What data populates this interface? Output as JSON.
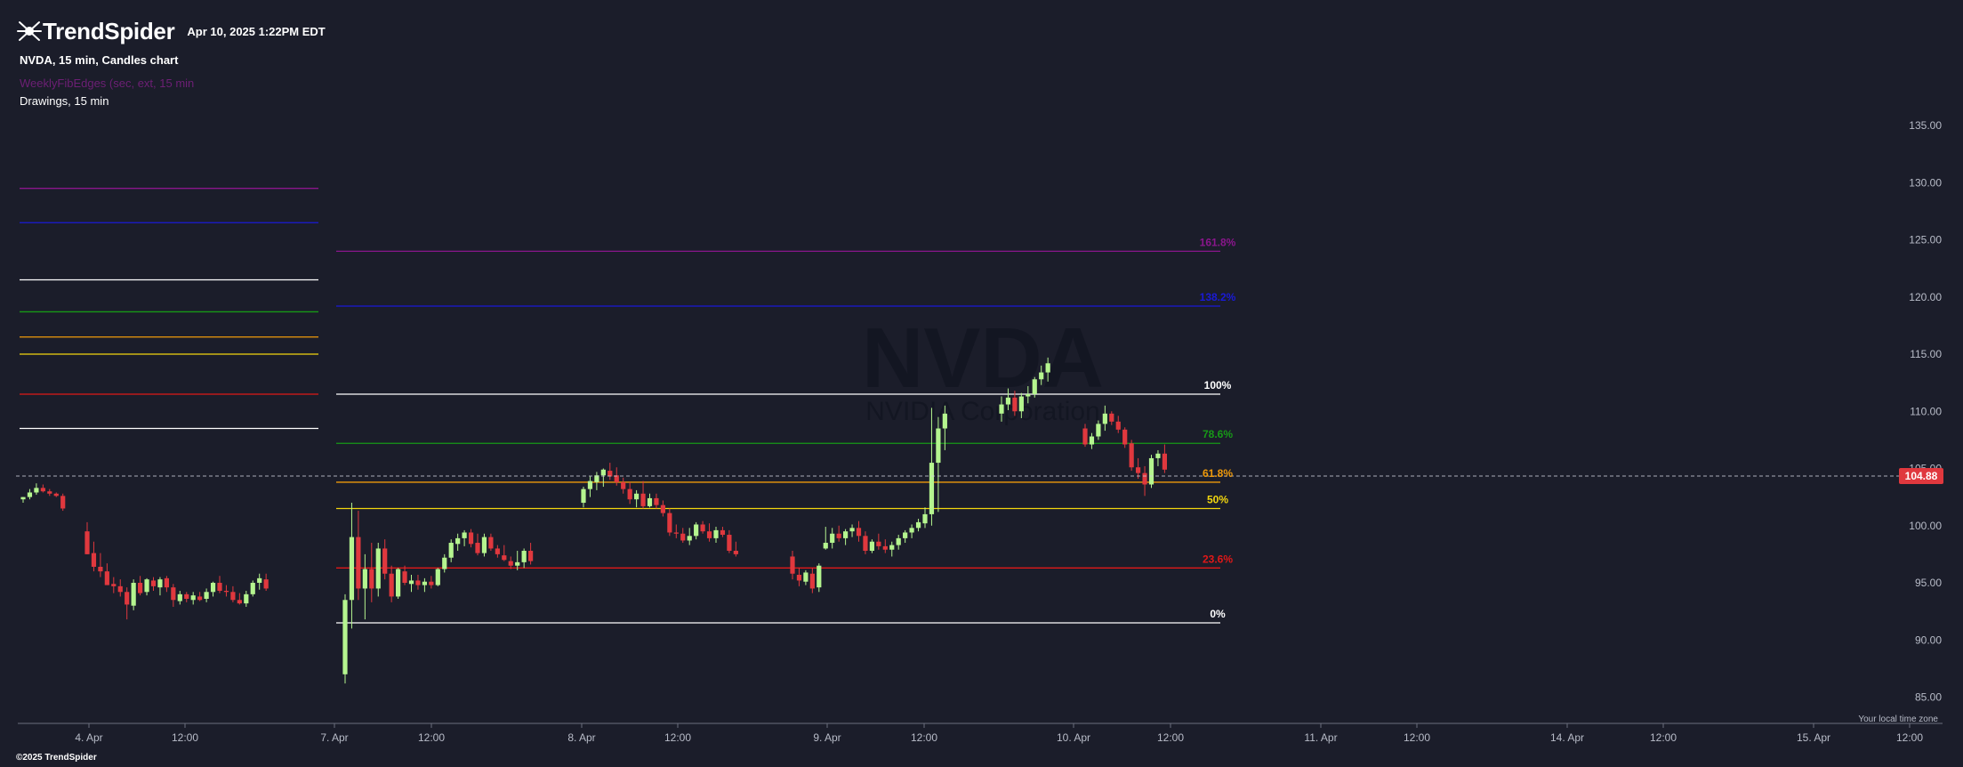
{
  "header": {
    "brand": "TrendSpider",
    "datetime": "Apr 10, 2025 1:22PM EDT",
    "chart_info": "NVDA, 15 min, Candles chart",
    "indicator_label": "WeeklyFibEdges (sec, ext, 15 min",
    "drawings_label": "Drawings, 15 min"
  },
  "watermark": {
    "symbol": "NVDA",
    "subtitle": "NVIDIA Corporation"
  },
  "footer": {
    "timezone": "Your local time zone",
    "copyright": "©2025 TrendSpider"
  },
  "colors": {
    "background": "#1b1d2a",
    "up": "#b5f58f",
    "down": "#e0383e",
    "price_badge": "#e0383e",
    "fib_0": "#ffffff",
    "fib_236": "#e01818",
    "fib_50": "#f2d60e",
    "fib_618": "#f09a0a",
    "fib_786": "#179a17",
    "fib_100": "#ffffff",
    "fib_1382": "#1a1ad6",
    "fib_1618": "#8a168c"
  },
  "chart_data": {
    "type": "candlestick",
    "symbol": "NVDA",
    "interval": "15 min",
    "y_axis": {
      "min": 85,
      "max": 135,
      "ticks": [
        "135.00",
        "130.00",
        "125.00",
        "120.00",
        "115.00",
        "110.00",
        "105.00",
        "100.00",
        "95.00",
        "90.00",
        "85.00"
      ]
    },
    "x_axis": {
      "ticks": [
        "4. Apr",
        "12:00",
        "7. Apr",
        "12:00",
        "8. Apr",
        "12:00",
        "9. Apr",
        "12:00",
        "10. Apr",
        "12:00",
        "11. Apr",
        "12:00",
        "14. Apr",
        "12:00",
        "15. Apr",
        "12:00"
      ]
    },
    "last_price": "104.88",
    "fib_labels": [
      "161.8%",
      "138.2%",
      "100%",
      "78.6%",
      "61.8%",
      "50%",
      "23.6%",
      "0%"
    ],
    "fib_levels": [
      {
        "label": "161.8%",
        "value": 124.0,
        "color": "#8a168c"
      },
      {
        "label": "138.2%",
        "value": 119.2,
        "color": "#1a1ad6"
      },
      {
        "label": "100%",
        "value": 111.5,
        "color": "#ffffff"
      },
      {
        "label": "78.6%",
        "value": 107.2,
        "color": "#179a17"
      },
      {
        "label": "61.8%",
        "value": 103.8,
        "color": "#f09a0a"
      },
      {
        "label": "50%",
        "value": 101.5,
        "color": "#f2d60e"
      },
      {
        "label": "23.6%",
        "value": 96.3,
        "color": "#e01818"
      },
      {
        "label": "0%",
        "value": 91.5,
        "color": "#ffffff"
      }
    ],
    "prev_week_levels": [
      {
        "value": 129.5,
        "color": "#8a168c"
      },
      {
        "value": 126.5,
        "color": "#1a1ad6"
      },
      {
        "value": 121.5,
        "color": "#ffffff"
      },
      {
        "value": 118.7,
        "color": "#179a17"
      },
      {
        "value": 116.5,
        "color": "#f09a0a"
      },
      {
        "value": 115.0,
        "color": "#f2d60e"
      },
      {
        "value": 111.5,
        "color": "#e01818"
      },
      {
        "value": 108.5,
        "color": "#ffffff"
      }
    ],
    "candles": [
      [
        102.3,
        102.5,
        102.0,
        102.5
      ],
      [
        102.5,
        103.2,
        102.3,
        102.9
      ],
      [
        102.9,
        103.7,
        102.7,
        103.3
      ],
      [
        103.3,
        103.6,
        102.9,
        103.0
      ],
      [
        103.0,
        103.2,
        102.6,
        102.8
      ],
      [
        102.8,
        102.9,
        102.5,
        102.6
      ],
      [
        102.6,
        102.8,
        101.3,
        101.5
      ],
      [
        99.5,
        100.3,
        97.5,
        97.5
      ],
      [
        97.6,
        98.6,
        96.0,
        96.4
      ],
      [
        96.4,
        97.6,
        95.5,
        96.0
      ],
      [
        96.0,
        96.7,
        94.8,
        94.8
      ],
      [
        94.9,
        95.5,
        94.1,
        94.7
      ],
      [
        94.7,
        95.3,
        93.8,
        94.2
      ],
      [
        94.2,
        94.6,
        91.8,
        93.1
      ],
      [
        93.0,
        95.3,
        92.6,
        95.0
      ],
      [
        95.0,
        95.6,
        93.9,
        94.1
      ],
      [
        94.2,
        95.4,
        93.9,
        95.3
      ],
      [
        95.2,
        95.5,
        94.3,
        94.7
      ],
      [
        94.6,
        95.5,
        93.9,
        95.3
      ],
      [
        95.4,
        95.6,
        94.2,
        94.6
      ],
      [
        94.6,
        94.9,
        92.9,
        93.5
      ],
      [
        93.4,
        94.3,
        93.1,
        94.0
      ],
      [
        94.0,
        94.2,
        93.3,
        93.6
      ],
      [
        93.5,
        94.2,
        93.1,
        93.9
      ],
      [
        93.8,
        94.2,
        93.4,
        93.5
      ],
      [
        93.6,
        94.5,
        93.3,
        94.2
      ],
      [
        94.2,
        95.1,
        93.8,
        95.0
      ],
      [
        95.0,
        95.6,
        94.1,
        94.3
      ],
      [
        94.3,
        94.8,
        93.8,
        94.2
      ],
      [
        94.2,
        94.7,
        93.3,
        93.5
      ],
      [
        93.5,
        94.1,
        93.1,
        93.2
      ],
      [
        93.2,
        94.3,
        92.9,
        94.0
      ],
      [
        94.0,
        95.2,
        93.8,
        95.0
      ],
      [
        95.0,
        95.8,
        94.4,
        95.4
      ],
      [
        95.3,
        95.8,
        94.3,
        94.5
      ],
      [
        87.0,
        94.0,
        86.2,
        93.5
      ],
      [
        93.5,
        102.0,
        91.0,
        99.0
      ],
      [
        99.0,
        101.3,
        93.5,
        94.5
      ],
      [
        94.5,
        97.5,
        91.8,
        96.2
      ],
      [
        96.2,
        98.5,
        93.3,
        94.5
      ],
      [
        94.5,
        98.5,
        93.8,
        98.0
      ],
      [
        98.0,
        98.8,
        95.3,
        95.8
      ],
      [
        95.8,
        96.5,
        93.3,
        93.8
      ],
      [
        93.8,
        96.3,
        93.6,
        96.2
      ],
      [
        96.0,
        96.5,
        94.8,
        95.0
      ],
      [
        94.9,
        95.7,
        94.2,
        95.2
      ],
      [
        95.2,
        95.7,
        94.4,
        94.8
      ],
      [
        94.8,
        95.4,
        94.2,
        95.1
      ],
      [
        95.1,
        95.6,
        94.5,
        94.8
      ],
      [
        94.8,
        96.3,
        94.7,
        96.2
      ],
      [
        96.2,
        97.5,
        95.9,
        97.2
      ],
      [
        97.2,
        98.8,
        96.8,
        98.5
      ],
      [
        98.4,
        99.3,
        97.8,
        98.9
      ],
      [
        98.9,
        99.6,
        98.2,
        99.4
      ],
      [
        99.4,
        99.7,
        98.1,
        98.4
      ],
      [
        98.5,
        99.3,
        97.4,
        97.6
      ],
      [
        97.6,
        99.3,
        97.3,
        99.0
      ],
      [
        99.0,
        99.3,
        97.8,
        98.0
      ],
      [
        98.0,
        98.3,
        97.2,
        97.5
      ],
      [
        97.4,
        98.3,
        96.9,
        97.0
      ],
      [
        96.9,
        97.3,
        96.2,
        96.5
      ],
      [
        96.5,
        97.8,
        96.1,
        96.8
      ],
      [
        96.8,
        98.0,
        96.3,
        97.8
      ],
      [
        97.8,
        98.5,
        96.6,
        96.9
      ],
      [
        102.0,
        103.4,
        101.6,
        103.2
      ],
      [
        103.2,
        104.3,
        102.5,
        103.9
      ],
      [
        103.8,
        104.7,
        103.1,
        104.4
      ],
      [
        104.4,
        105.0,
        103.4,
        104.9
      ],
      [
        104.8,
        105.5,
        104.0,
        104.3
      ],
      [
        104.4,
        105.1,
        103.5,
        103.8
      ],
      [
        103.8,
        104.2,
        102.8,
        103.2
      ],
      [
        103.2,
        103.8,
        101.9,
        102.3
      ],
      [
        102.3,
        103.1,
        101.6,
        102.8
      ],
      [
        102.8,
        103.9,
        101.5,
        101.7
      ],
      [
        101.7,
        102.8,
        101.6,
        102.4
      ],
      [
        102.4,
        102.8,
        101.5,
        101.8
      ],
      [
        101.8,
        102.2,
        100.8,
        101.1
      ],
      [
        101.1,
        101.5,
        99.1,
        99.4
      ],
      [
        99.4,
        100.1,
        98.9,
        99.3
      ],
      [
        99.3,
        99.8,
        98.5,
        98.7
      ],
      [
        98.7,
        99.8,
        98.3,
        99.1
      ],
      [
        99.1,
        100.3,
        98.8,
        100.1
      ],
      [
        100.1,
        100.4,
        99.3,
        99.5
      ],
      [
        99.5,
        100.2,
        98.6,
        98.9
      ],
      [
        98.9,
        99.9,
        98.5,
        99.6
      ],
      [
        99.6,
        99.9,
        99.0,
        99.2
      ],
      [
        99.2,
        99.6,
        97.6,
        97.8
      ],
      [
        97.8,
        98.6,
        97.3,
        97.5
      ],
      [
        97.3,
        97.8,
        95.3,
        95.8
      ],
      [
        95.7,
        96.3,
        94.7,
        95.2
      ],
      [
        95.1,
        96.1,
        94.8,
        95.9
      ],
      [
        95.8,
        96.3,
        94.1,
        94.5
      ],
      [
        94.6,
        96.7,
        94.2,
        96.5
      ],
      [
        98.0,
        99.9,
        97.9,
        98.5
      ],
      [
        98.5,
        99.8,
        98.0,
        99.3
      ],
      [
        99.3,
        100.0,
        98.6,
        98.9
      ],
      [
        98.9,
        99.7,
        98.3,
        99.5
      ],
      [
        99.5,
        100.1,
        99.0,
        99.8
      ],
      [
        99.8,
        100.4,
        98.6,
        99.1
      ],
      [
        99.1,
        99.5,
        97.5,
        97.8
      ],
      [
        97.8,
        98.8,
        97.6,
        98.6
      ],
      [
        98.6,
        99.3,
        97.9,
        98.2
      ],
      [
        98.2,
        98.8,
        97.6,
        97.9
      ],
      [
        97.9,
        98.6,
        97.3,
        98.3
      ],
      [
        98.3,
        99.2,
        97.9,
        98.9
      ],
      [
        98.9,
        99.6,
        98.5,
        99.4
      ],
      [
        99.4,
        100.1,
        98.9,
        99.8
      ],
      [
        99.8,
        100.6,
        99.5,
        100.3
      ],
      [
        100.2,
        101.6,
        99.8,
        101.0
      ],
      [
        101.0,
        110.3,
        100.0,
        105.5
      ],
      [
        105.5,
        109.5,
        101.2,
        108.5
      ],
      [
        108.5,
        110.5,
        106.6,
        109.8
      ],
      [
        109.8,
        111.3,
        109.1,
        110.6
      ],
      [
        110.6,
        112.0,
        110.1,
        111.2
      ],
      [
        111.2,
        111.8,
        109.6,
        110.0
      ],
      [
        110.0,
        111.6,
        109.4,
        111.3
      ],
      [
        111.3,
        112.2,
        110.7,
        111.5
      ],
      [
        111.5,
        113.0,
        111.2,
        112.8
      ],
      [
        112.8,
        114.0,
        112.3,
        113.4
      ],
      [
        113.4,
        114.7,
        112.6,
        114.2
      ],
      [
        108.5,
        108.9,
        106.9,
        107.1
      ],
      [
        107.1,
        108.1,
        106.7,
        107.8
      ],
      [
        107.8,
        109.2,
        107.5,
        108.9
      ],
      [
        108.9,
        110.5,
        108.3,
        109.8
      ],
      [
        109.8,
        110.0,
        108.8,
        109.1
      ],
      [
        109.1,
        109.6,
        108.1,
        108.4
      ],
      [
        108.4,
        108.6,
        106.8,
        107.1
      ],
      [
        107.2,
        107.5,
        104.8,
        105.1
      ],
      [
        105.1,
        105.9,
        104.1,
        104.6
      ],
      [
        104.6,
        105.2,
        102.6,
        103.6
      ],
      [
        103.6,
        106.2,
        103.3,
        105.9
      ],
      [
        105.9,
        106.6,
        105.2,
        106.3
      ],
      [
        106.3,
        107.1,
        104.6,
        104.9
      ]
    ]
  }
}
